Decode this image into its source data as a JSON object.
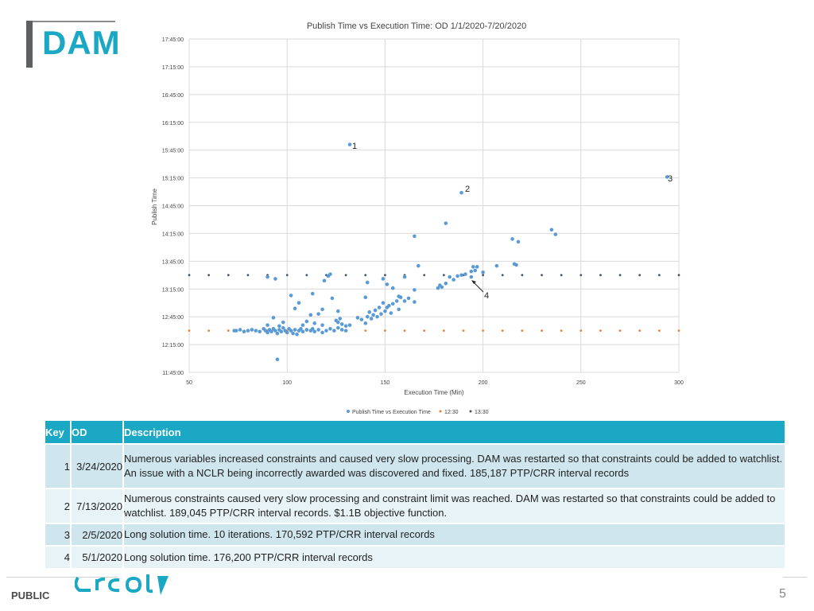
{
  "logo": {
    "text": "DAM"
  },
  "chart_data": {
    "type": "scatter",
    "title": "Publish Time vs Execution Time: OD 1/1/2020-7/20/2020",
    "xlabel": "Execution Time (Min)",
    "ylabel": "Publish Time",
    "xlim": [
      50,
      300
    ],
    "xticks": [
      50,
      100,
      150,
      200,
      250,
      300
    ],
    "ylim_minutes": [
      705,
      1065
    ],
    "yticks": [
      "11:45:00",
      "12:15:00",
      "12:45:00",
      "13:15:00",
      "13:45:00",
      "14:15:00",
      "14:45:00",
      "15:15:00",
      "15:45:00",
      "16:15:00",
      "16:45:00",
      "17:15:00",
      "17:45:00"
    ],
    "grid": true,
    "legend_position": "bottom",
    "series": [
      {
        "name": "Publish Time vs Execution Time",
        "color": "#5b9bd5",
        "points": [
          [
            "73",
            "12:30"
          ],
          [
            "74",
            "12:30"
          ],
          [
            "76",
            "12:31"
          ],
          [
            "78",
            "12:29"
          ],
          [
            "80",
            "12:30"
          ],
          [
            "82",
            "12:31"
          ],
          [
            "84",
            "12:30"
          ],
          [
            "86",
            "12:29"
          ],
          [
            "88",
            "12:32"
          ],
          [
            "89",
            "12:30"
          ],
          [
            "90",
            "12:28"
          ],
          [
            "91",
            "12:31"
          ],
          [
            "92",
            "12:29"
          ],
          [
            "93",
            "12:32"
          ],
          [
            "94",
            "12:30"
          ],
          [
            "95",
            "12:27"
          ],
          [
            "96",
            "12:31"
          ],
          [
            "97",
            "12:29"
          ],
          [
            "98",
            "12:33"
          ],
          [
            "99",
            "12:30"
          ],
          [
            "100",
            "12:28"
          ],
          [
            "101",
            "12:32"
          ],
          [
            "102",
            "12:30"
          ],
          [
            "103",
            "12:27"
          ],
          [
            "104",
            "12:31"
          ],
          [
            "105",
            "12:26"
          ],
          [
            "106",
            "12:30"
          ],
          [
            "107",
            "12:32"
          ],
          [
            "108",
            "12:29"
          ],
          [
            "110",
            "12:31"
          ],
          [
            "112",
            "12:30"
          ],
          [
            "113",
            "12:32"
          ],
          [
            "114",
            "12:29"
          ],
          [
            "116",
            "12:31"
          ],
          [
            "118",
            "12:28"
          ],
          [
            "120",
            "12:30"
          ],
          [
            "122",
            "12:32"
          ],
          [
            "124",
            "12:30"
          ],
          [
            "126",
            "12:33"
          ],
          [
            "128",
            "12:31"
          ],
          [
            "130",
            "12:30"
          ],
          [
            "90",
            "12:36"
          ],
          [
            "93",
            "12:44"
          ],
          [
            "96",
            "12:35"
          ],
          [
            "98",
            "12:39"
          ],
          [
            "108",
            "12:36"
          ],
          [
            "110",
            "12:40"
          ],
          [
            "112",
            "12:47"
          ],
          [
            "114",
            "12:38"
          ],
          [
            "118",
            "12:36"
          ],
          [
            "125",
            "12:41"
          ],
          [
            "126",
            "12:39"
          ],
          [
            "130",
            "12:35"
          ],
          [
            "132",
            "12:36"
          ],
          [
            "90",
            "13:28"
          ],
          [
            "94",
            "13:26"
          ],
          [
            "102",
            "13:08"
          ],
          [
            "104",
            "12:54"
          ],
          [
            "113",
            "13:10"
          ],
          [
            "116",
            "12:48"
          ],
          [
            "118",
            "12:53"
          ],
          [
            "123",
            "13:05"
          ],
          [
            "126",
            "12:51"
          ],
          [
            "127",
            "12:43"
          ],
          [
            "128",
            "12:37"
          ],
          [
            "95",
            "11:59"
          ],
          [
            "106",
            "13:00"
          ],
          [
            "119",
            "13:24"
          ],
          [
            "121",
            "13:29"
          ],
          [
            "122",
            "13:31"
          ],
          [
            "136",
            "12:44"
          ],
          [
            "138",
            "12:42"
          ],
          [
            "140",
            "12:38"
          ],
          [
            "141",
            "12:45"
          ],
          [
            "142",
            "12:50"
          ],
          [
            "143",
            "12:43"
          ],
          [
            "144",
            "12:47"
          ],
          [
            "145",
            "12:52"
          ],
          [
            "146",
            "12:45"
          ],
          [
            "147",
            "12:55"
          ],
          [
            "148",
            "12:48"
          ],
          [
            "149",
            "13:00"
          ],
          [
            "150",
            "12:51"
          ],
          [
            "151",
            "12:55"
          ],
          [
            "152",
            "12:57"
          ],
          [
            "153",
            "12:49"
          ],
          [
            "154",
            "12:59"
          ],
          [
            "156",
            "13:02"
          ],
          [
            "157",
            "12:53"
          ],
          [
            "158",
            "13:06"
          ],
          [
            "160",
            "13:02"
          ],
          [
            "162",
            "13:05"
          ],
          [
            "165",
            "13:01"
          ],
          [
            "140",
            "13:06"
          ],
          [
            "141",
            "13:22"
          ],
          [
            "149",
            "13:26"
          ],
          [
            "151",
            "13:20"
          ],
          [
            "154",
            "13:16"
          ],
          [
            "157",
            "13:07"
          ],
          [
            "160",
            "13:28"
          ],
          [
            "165",
            "13:14"
          ],
          [
            "167",
            "13:40"
          ],
          [
            "165",
            "14:12"
          ],
          [
            "177",
            "13:16"
          ],
          [
            "178",
            "13:19"
          ],
          [
            "179",
            "13:17"
          ],
          [
            "181",
            "13:21"
          ],
          [
            "183",
            "13:28"
          ],
          [
            "185",
            "13:25"
          ],
          [
            "187",
            "13:29"
          ],
          [
            "189",
            "13:30"
          ],
          [
            "191",
            "13:31"
          ],
          [
            "194",
            "13:34"
          ],
          [
            "195",
            "13:39"
          ],
          [
            "196",
            "13:35"
          ],
          [
            "197",
            "13:39"
          ],
          [
            "200",
            "13:33"
          ],
          [
            "207",
            "13:40"
          ],
          [
            "215",
            "14:09"
          ],
          [
            "216",
            "13:42"
          ],
          [
            "217",
            "13:41"
          ],
          [
            "218",
            "14:06"
          ],
          [
            "235",
            "14:19"
          ],
          [
            "237",
            "14:14"
          ],
          [
            "181",
            "14:26"
          ],
          [
            "132",
            "15:51"
          ],
          [
            "189",
            "14:59"
          ],
          [
            "294",
            "15:16"
          ],
          [
            "194",
            "13:28"
          ]
        ]
      },
      {
        "name": "12:30",
        "color": "#ed7d31"
      },
      {
        "name": "13:30",
        "color": "#44546a"
      }
    ],
    "annotations": [
      "1",
      "2",
      "3",
      "4"
    ]
  },
  "table": {
    "headers": {
      "key": "Key",
      "od": "OD",
      "desc": "Description"
    },
    "rows": [
      {
        "key": "1",
        "od": "3/24/2020",
        "desc": "Numerous variables increased constraints and caused very slow processing. DAM was restarted so that constraints could be added to watchlist. An issue with a NCLR being incorrectly awarded was  discovered and fixed. 185,187 PTP/CRR interval records"
      },
      {
        "key": "2",
        "od": "7/13/2020",
        "desc": "Numerous constraints caused very slow processing and constraint limit was reached. DAM was restarted so that constraints could be added to watchlist. 189,045 PTP/CRR interval records. $1.1B objective function."
      },
      {
        "key": "3",
        "od": "2/5/2020",
        "desc": "Long solution time. 10 iterations. 170,592 PTP/CRR interval records"
      },
      {
        "key": "4",
        "od": "5/1/2020",
        "desc": "Long solution time. 176,200 PTP/CRR interval records"
      }
    ]
  },
  "footer": {
    "label": "PUBLIC",
    "page": "5",
    "logo_color": "#1aa8c4"
  }
}
